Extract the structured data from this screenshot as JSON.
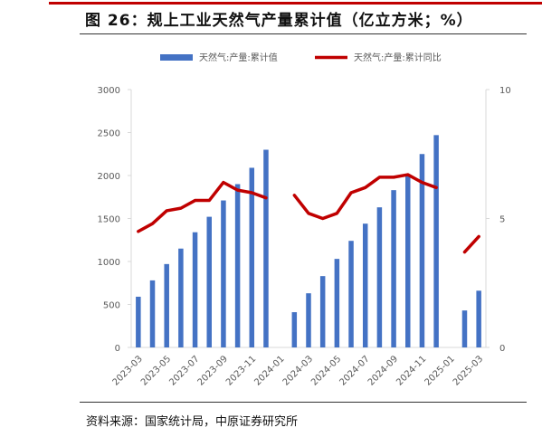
{
  "header": {
    "title": "图 26：规上工业天然气产量累计值（亿立方米；%）"
  },
  "footer": {
    "source": "资料来源：国家统计局，中原证券研究所"
  },
  "colors": {
    "bar": "#4472c4",
    "line": "#c00000",
    "axis": "#d9d9d9",
    "text": "#595959"
  },
  "chart_data": {
    "type": "bar",
    "categories": [
      "2023-03",
      "2023-04",
      "2023-05",
      "2023-06",
      "2023-07",
      "2023-08",
      "2023-09",
      "2023-10",
      "2023-11",
      "2023-12",
      "2024-01",
      "2024-02",
      "2024-03",
      "2024-04",
      "2024-05",
      "2024-06",
      "2024-07",
      "2024-08",
      "2024-09",
      "2024-10",
      "2024-11",
      "2024-12",
      "2025-01",
      "2025-02",
      "2025-03"
    ],
    "x_tick_labels": [
      "2023-03",
      "2023-05",
      "2023-07",
      "2023-09",
      "2023-11",
      "2024-01",
      "2024-03",
      "2024-05",
      "2024-07",
      "2024-09",
      "2024-11",
      "2025-01",
      "2025-03"
    ],
    "series": [
      {
        "name": "天然气:产量:累计值",
        "type": "bar",
        "axis": "left",
        "values": [
          590,
          780,
          970,
          1150,
          1340,
          1520,
          1710,
          1900,
          2090,
          2300,
          null,
          410,
          630,
          830,
          1030,
          1240,
          1440,
          1630,
          1830,
          2010,
          2250,
          2470,
          null,
          430,
          660
        ]
      },
      {
        "name": "天然气:产量:累计同比",
        "type": "line",
        "axis": "right",
        "values": [
          4.5,
          4.8,
          5.3,
          5.4,
          5.7,
          5.7,
          6.4,
          6.1,
          6.0,
          5.8,
          null,
          5.9,
          5.2,
          5.0,
          5.2,
          6.0,
          6.2,
          6.6,
          6.6,
          6.7,
          6.4,
          6.2,
          null,
          3.7,
          4.3
        ]
      }
    ],
    "y_left": {
      "min": 0,
      "max": 3000,
      "ticks": [
        0,
        500,
        1000,
        1500,
        2000,
        2500,
        3000
      ]
    },
    "y_right": {
      "min": 0,
      "max": 10,
      "ticks": [
        0,
        5,
        10
      ]
    },
    "legend_position": "top-center",
    "grid": false
  }
}
